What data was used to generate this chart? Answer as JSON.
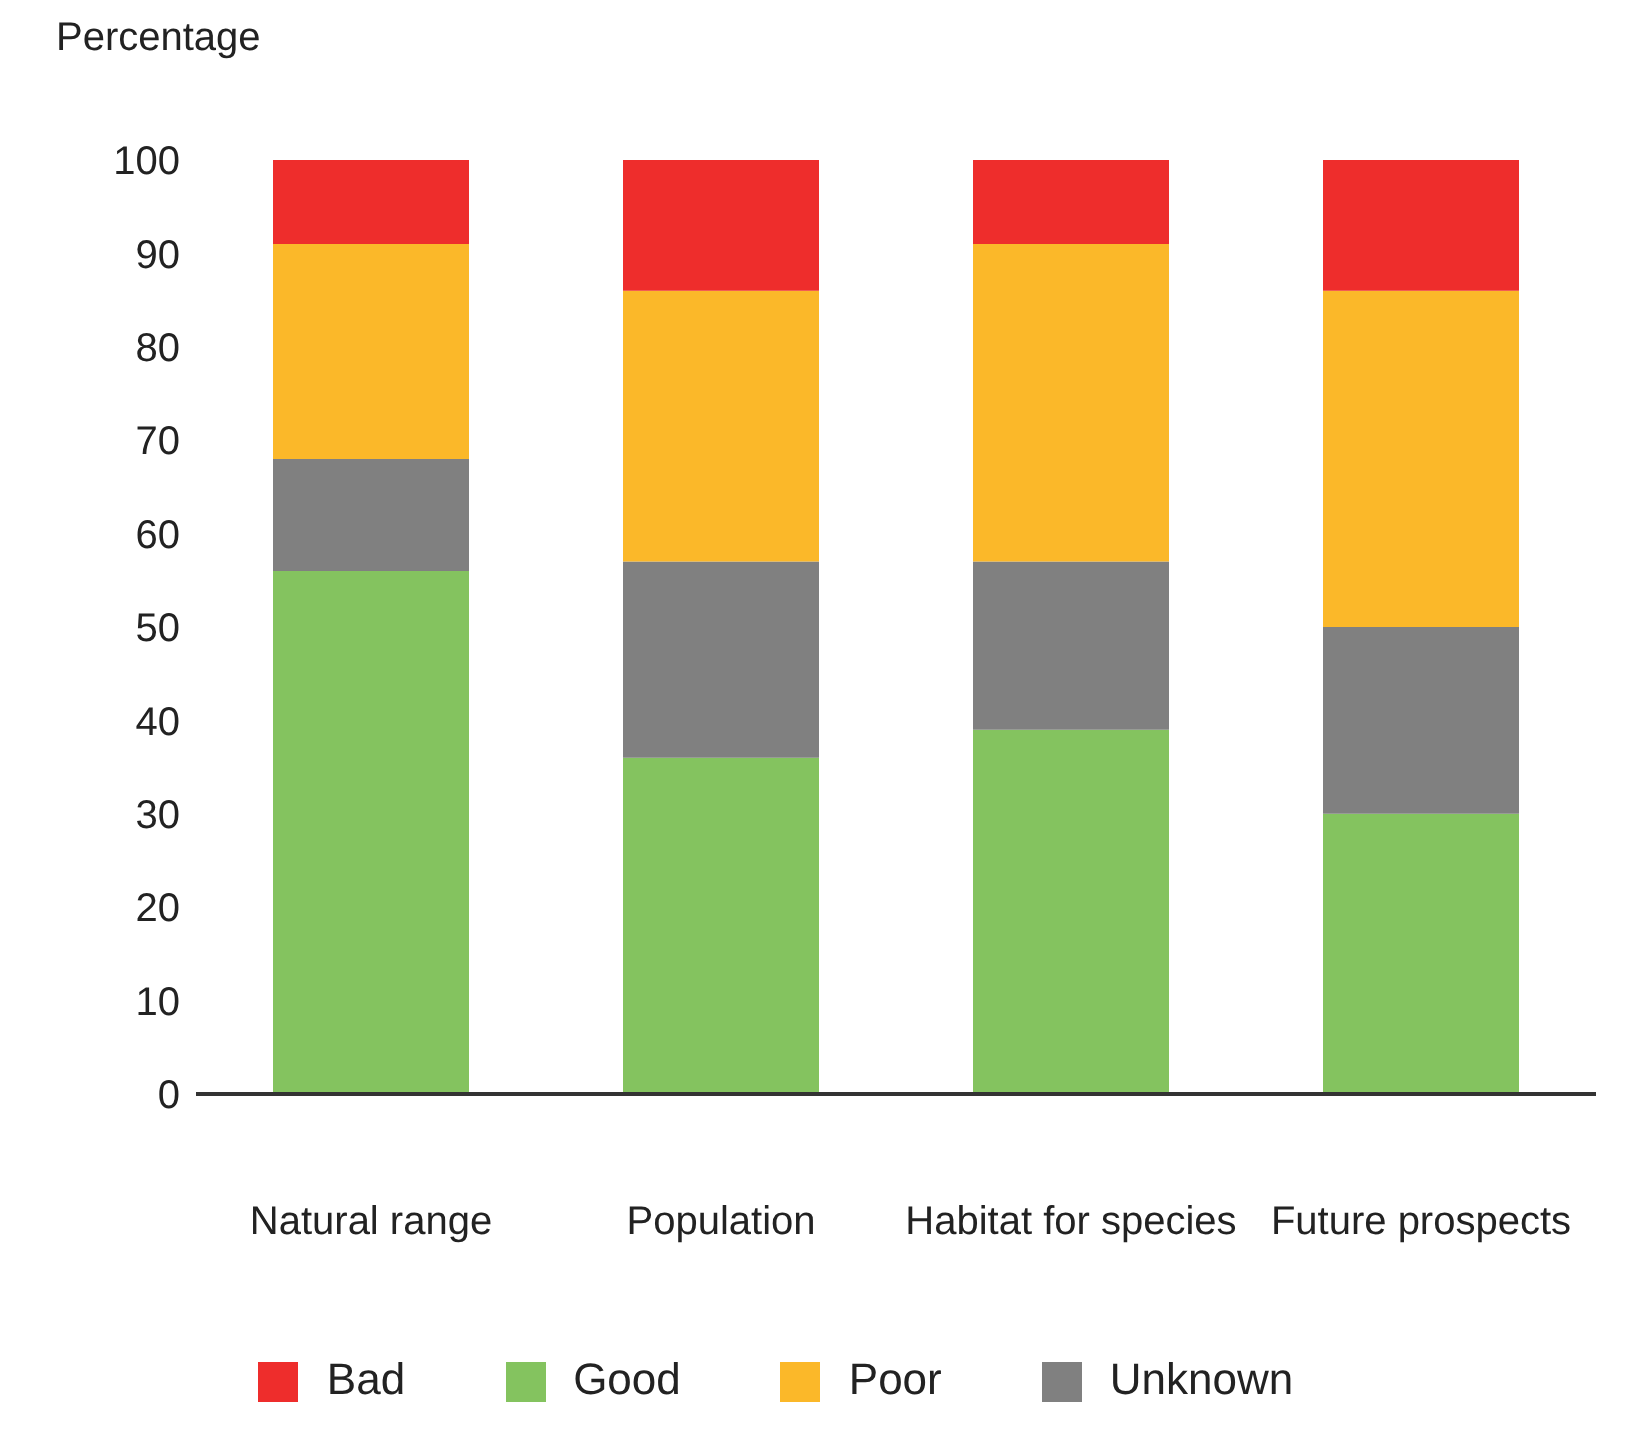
{
  "chart_data": {
    "type": "bar",
    "stacked": true,
    "ylabel": "Percentage",
    "categories": [
      "Natural range",
      "Population",
      "Habitat for species",
      "Future prospects"
    ],
    "series": [
      {
        "name": "Good",
        "color": "#84c35f",
        "values": [
          56,
          36,
          39,
          30
        ]
      },
      {
        "name": "Unknown",
        "color": "#808080",
        "values": [
          12,
          21,
          18,
          20
        ]
      },
      {
        "name": "Poor",
        "color": "#fbb829",
        "values": [
          23,
          29,
          34,
          36
        ]
      },
      {
        "name": "Bad",
        "color": "#ee2d2c",
        "values": [
          9,
          14,
          9,
          14
        ]
      }
    ],
    "ylim": [
      0,
      100
    ],
    "yticks": [
      0,
      10,
      20,
      30,
      40,
      50,
      60,
      70,
      80,
      90,
      100
    ],
    "grid": false,
    "legend": "bottom"
  }
}
